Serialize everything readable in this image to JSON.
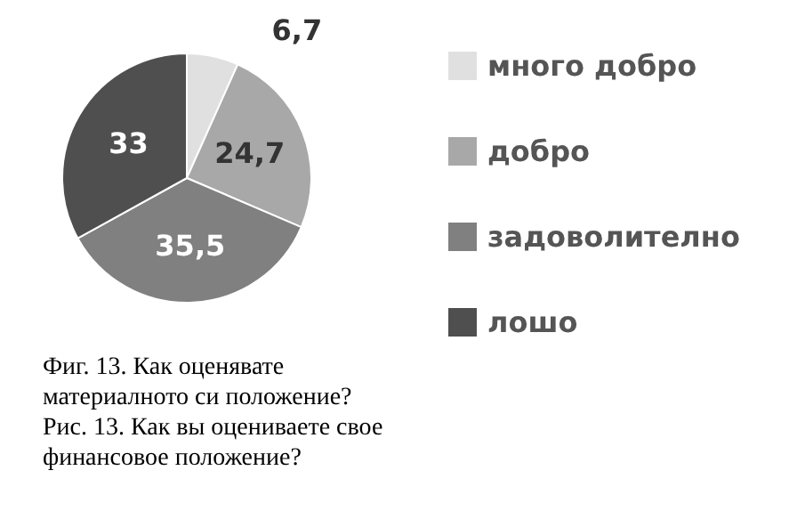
{
  "chart_data": {
    "type": "pie",
    "categories": [
      "много добро",
      "добро",
      "задоволително",
      "лошо"
    ],
    "values": [
      6.7,
      24.7,
      35.5,
      33
    ],
    "value_labels": [
      "6,7",
      "24,7",
      "35,5",
      "33"
    ],
    "colors": [
      "#e0e0e0",
      "#a8a8a8",
      "#808080",
      "#4f4f4f"
    ],
    "legend": "right",
    "annotations": [
      "Фиг. 13. Как оценявате материалното си положение?",
      "Рис. 13. Как вы оцениваете свое финансовое положение?"
    ]
  }
}
